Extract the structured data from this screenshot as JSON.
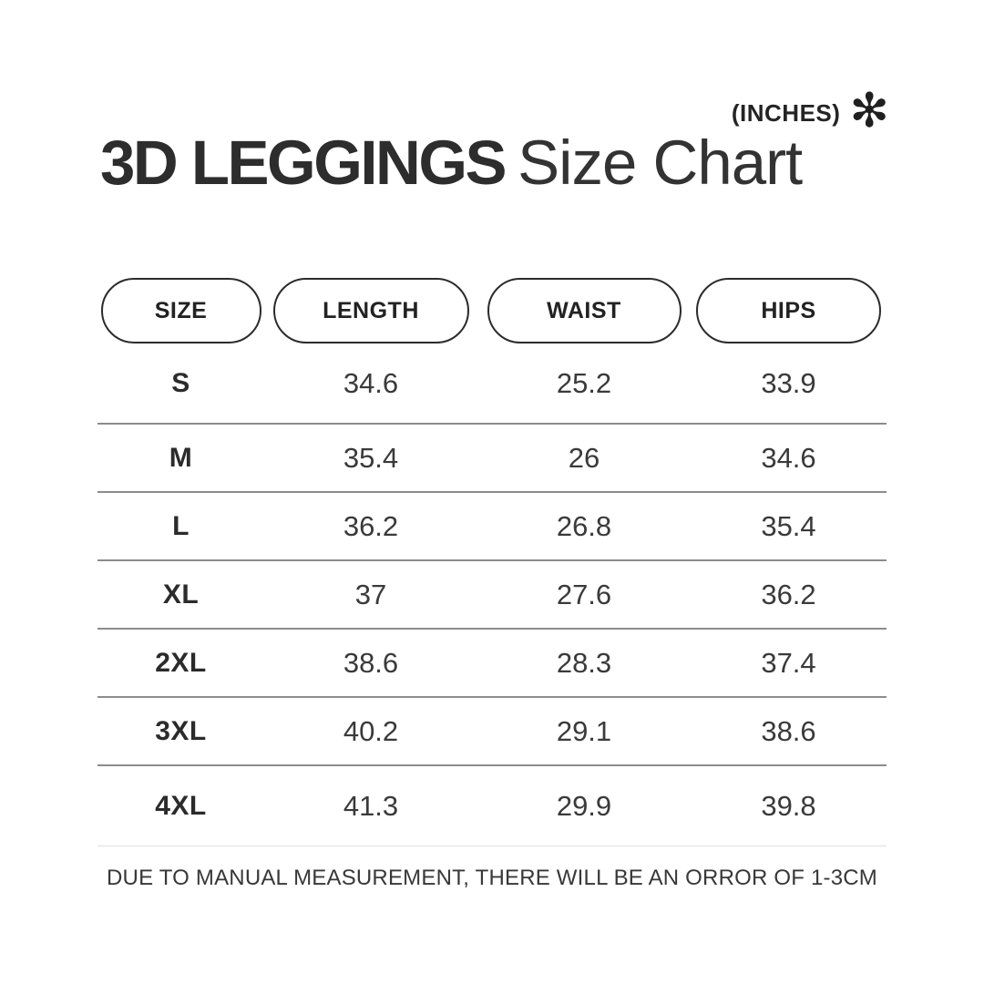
{
  "header": {
    "units": "(INCHES)",
    "asterisk": "✻",
    "title_bold": "3D LEGGINGS",
    "title_regular": "Size Chart"
  },
  "table": {
    "columns": [
      "SIZE",
      "LENGTH",
      "WAIST",
      "HIPS"
    ],
    "rows": [
      {
        "size": "S",
        "length": "34.6",
        "waist": "25.2",
        "hips": "33.9"
      },
      {
        "size": "M",
        "length": "35.4",
        "waist": "26",
        "hips": "34.6"
      },
      {
        "size": "L",
        "length": "36.2",
        "waist": "26.8",
        "hips": "35.4"
      },
      {
        "size": "XL",
        "length": "37",
        "waist": "27.6",
        "hips": "36.2"
      },
      {
        "size": "2XL",
        "length": "38.6",
        "waist": "28.3",
        "hips": "37.4"
      },
      {
        "size": "3XL",
        "length": "40.2",
        "waist": "29.1",
        "hips": "38.6"
      },
      {
        "size": "4XL",
        "length": "41.3",
        "waist": "29.9",
        "hips": "39.8"
      }
    ]
  },
  "footer": {
    "note": "DUE TO MANUAL MEASUREMENT, THERE WILL BE AN ORROR OF 1-3CM"
  },
  "colors": {
    "text": "#2d2d2d",
    "divider": "#8c8c8c",
    "light_divider": "#e0e0e0",
    "background": "#ffffff"
  },
  "chart_data": {
    "type": "table",
    "title": "3D LEGGINGS Size Chart",
    "units_label": "(INCHES)",
    "columns": [
      "SIZE",
      "LENGTH",
      "WAIST",
      "HIPS"
    ],
    "rows": [
      [
        "S",
        34.6,
        25.2,
        33.9
      ],
      [
        "M",
        35.4,
        26,
        34.6
      ],
      [
        "L",
        36.2,
        26.8,
        35.4
      ],
      [
        "XL",
        37,
        27.6,
        36.2
      ],
      [
        "2XL",
        38.6,
        28.3,
        37.4
      ],
      [
        "3XL",
        40.2,
        29.1,
        38.6
      ],
      [
        "4XL",
        41.3,
        29.9,
        39.8
      ]
    ],
    "note": "DUE TO MANUAL MEASUREMENT, THERE WILL BE AN ORROR OF 1-3CM"
  }
}
